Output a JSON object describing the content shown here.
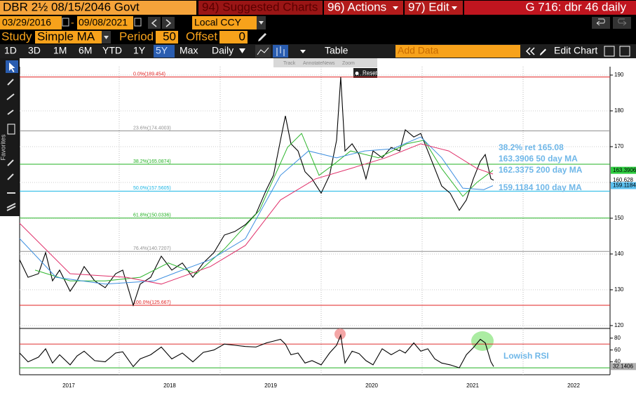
{
  "header": {
    "security": "DBR 2½ 08/15/2046 Govt",
    "suggested": "94) Suggested Charts",
    "actions": "96) Actions",
    "edit": "97) Edit",
    "page": "G 716: dbr 46 daily"
  },
  "range": {
    "start": "03/29/2016",
    "separator": "-",
    "end": "09/08/2021",
    "currency": "Local CCY"
  },
  "study": {
    "label": "Study",
    "name": "Simple MA",
    "period_label": "Period",
    "period": 50,
    "offset_label": "Offset",
    "offset": 0
  },
  "toolbar": {
    "periods": [
      "1D",
      "3D",
      "1M",
      "6M",
      "YTD",
      "1Y",
      "5Y",
      "Max"
    ],
    "selected": 6,
    "frequency": "Daily",
    "table": "Table",
    "add_data": "Add Data",
    "edit_chart": "Edit Chart"
  },
  "chart_tools": {
    "items": [
      "Track",
      "Annotate",
      "News",
      "Zoom"
    ],
    "reset": "Reset",
    "sidebar": "Favorites"
  },
  "chart_data": [
    {
      "type": "line",
      "xlim": [
        2017.014,
        2022.861
      ],
      "ylim": [
        119.2,
        192.35
      ],
      "xticks": [
        {
          "value": 2017.5,
          "label": "2017"
        },
        {
          "value": 2018.5,
          "label": "2018"
        },
        {
          "value": 2019.5,
          "label": "2019"
        },
        {
          "value": 2020.5,
          "label": "2020"
        },
        {
          "value": 2021.5,
          "label": "2021"
        },
        {
          "value": 2022.5,
          "label": "2022"
        }
      ],
      "x_grid": [
        2018,
        2019,
        2020,
        2021,
        2022
      ],
      "yticks": [
        120,
        130,
        140,
        150,
        160,
        170,
        180,
        190
      ],
      "grid": true,
      "axis_side": "right",
      "series": [
        {
          "color": "#000000",
          "x": [
            2017.014,
            2017.097,
            2017.201,
            2017.271,
            2017.34,
            2017.41,
            2017.514,
            2017.583,
            2017.653,
            2017.757,
            2017.861,
            2017.965,
            2018.035,
            2018.139,
            2018.208,
            2018.312,
            2018.417,
            2018.521,
            2018.625,
            2018.729,
            2018.833,
            2018.938,
            2019.042,
            2019.146,
            2019.25,
            2019.354,
            2019.458,
            2019.528,
            2019.597,
            2019.646,
            2019.701,
            2019.771,
            2019.84,
            2019.91,
            2020.0,
            2020.083,
            2020.153,
            2020.194,
            2020.236,
            2020.306,
            2020.375,
            2020.444,
            2020.514,
            2020.604,
            2020.694,
            2020.778,
            2020.833,
            2020.917,
            2020.986,
            2021.056,
            2021.125,
            2021.194,
            2021.278,
            2021.368,
            2021.438,
            2021.507,
            2021.576,
            2021.625,
            2021.681,
            2021.708
          ],
          "values": [
            138.4,
            133.5,
            134.5,
            140.4,
            132.5,
            135.5,
            129.6,
            132.5,
            136.5,
            132.5,
            130.6,
            134.5,
            135.5,
            125.667,
            131.6,
            133.5,
            139.4,
            135.5,
            137.5,
            133.5,
            137.5,
            140.4,
            145.3,
            146.3,
            148.2,
            151.2,
            158,
            162,
            171.8,
            178.6,
            170.8,
            168.8,
            163,
            161,
            157,
            162,
            171.8,
            189.454,
            168.8,
            170.8,
            167.8,
            161,
            168.8,
            166.9,
            169.8,
            168.8,
            174.7,
            172.7,
            173.7,
            168.8,
            163.9,
            159,
            157,
            152.2,
            155.1,
            161,
            165.9,
            167.8,
            161,
            160.628
          ]
        },
        {
          "color": "#2db52d",
          "x": [
            2017.167,
            2017.514,
            2017.861,
            2018.208,
            2018.486,
            2018.764,
            2019.042,
            2019.389,
            2019.667,
            2019.806,
            2019.979,
            2020.118,
            2020.292,
            2020.569,
            2020.847,
            2021.021,
            2021.194,
            2021.403,
            2021.542,
            2021.701
          ],
          "values": [
            135.5,
            132.5,
            132.5,
            133.5,
            137.5,
            134.5,
            141.4,
            152.2,
            169.8,
            173.7,
            162,
            164.9,
            168.8,
            166.9,
            170.8,
            171.8,
            163.9,
            156.1,
            160,
            163.3906
          ]
        },
        {
          "color": "#3d8fe0",
          "x": [
            2017.014,
            2017.375,
            2017.861,
            2018.347,
            2018.625,
            2018.903,
            2019.25,
            2019.597,
            2019.875,
            2020.153,
            2020.431,
            2020.708,
            2020.986,
            2021.194,
            2021.403,
            2021.611,
            2021.701
          ],
          "values": [
            144.3,
            133.5,
            131.6,
            132.5,
            135.5,
            138.4,
            144.3,
            162,
            168.8,
            166.9,
            168.8,
            169.4,
            172.7,
            166.9,
            158.4,
            158,
            159.1184
          ]
        },
        {
          "color": "#e0306a",
          "x": [
            2017.014,
            2017.514,
            2018.069,
            2018.417,
            2018.903,
            2019.25,
            2019.597,
            2019.944,
            2020.292,
            2020.639,
            2020.986,
            2021.264,
            2021.542,
            2021.701
          ],
          "values": [
            148.6,
            134.5,
            133.5,
            131.6,
            136.5,
            142.4,
            155.1,
            161,
            163.9,
            166.9,
            170.8,
            168.8,
            163.9,
            162.3375
          ]
        }
      ],
      "levels": [
        {
          "label": "0.0%(189.454)",
          "value": 189.454,
          "color": "#e02020"
        },
        {
          "label": "23.6%(174.4003)",
          "value": 174.4003,
          "color": "#909090"
        },
        {
          "label": "38.2%(165.0874)",
          "value": 165.0874,
          "color": "#22b022"
        },
        {
          "label": "50.0%(157.5605)",
          "value": 157.5605,
          "color": "#18b4e4"
        },
        {
          "label": "61.8%(150.0336)",
          "value": 150.0336,
          "color": "#22b022"
        },
        {
          "label": "76.4%(140.7207)",
          "value": 140.7207,
          "color": "#909090"
        },
        {
          "label": "100.0%(125.667)",
          "value": 125.667,
          "color": "#e02020"
        }
      ],
      "last_values": [
        {
          "value": 163.3906,
          "color": "#2ecc40"
        },
        {
          "value": 160.628,
          "color": "#ffffff"
        },
        {
          "value": 159.1184,
          "color": "#5bc0f0"
        }
      ],
      "annotations": [
        "38.2% ret 165.08",
        "163.3906 50 day MA",
        "162.3375 200 day MA",
        "159.1184 100 day MA"
      ]
    },
    {
      "type": "line",
      "xlim": [
        2017.014,
        2022.861
      ],
      "ylim": [
        23,
        94
      ],
      "yticks": [
        40,
        60,
        80
      ],
      "axis_side": "right",
      "series": [
        {
          "color": "#000000",
          "x": [
            2017.014,
            2017.097,
            2017.201,
            2017.271,
            2017.34,
            2017.41,
            2017.514,
            2017.583,
            2017.653,
            2017.757,
            2017.861,
            2017.965,
            2018.035,
            2018.139,
            2018.208,
            2018.312,
            2018.417,
            2018.521,
            2018.625,
            2018.729,
            2018.833,
            2018.938,
            2019.042,
            2019.146,
            2019.25,
            2019.354,
            2019.458,
            2019.528,
            2019.597,
            2019.646,
            2019.701,
            2019.771,
            2019.84,
            2019.91,
            2020.0,
            2020.083,
            2020.153,
            2020.194,
            2020.236,
            2020.306,
            2020.375,
            2020.444,
            2020.514,
            2020.604,
            2020.694,
            2020.778,
            2020.833,
            2020.917,
            2020.986,
            2021.056,
            2021.125,
            2021.194,
            2021.278,
            2021.368,
            2021.438,
            2021.507,
            2021.576,
            2021.625,
            2021.681,
            2021.708
          ],
          "values": [
            55,
            40,
            48,
            62,
            38,
            52,
            35,
            50,
            58,
            42,
            40,
            55,
            57,
            32,
            45,
            52,
            65,
            45,
            55,
            40,
            56,
            60,
            70,
            68,
            66,
            65,
            72,
            75,
            78,
            70,
            52,
            55,
            38,
            42,
            35,
            55,
            68,
            85,
            38,
            58,
            54,
            42,
            35,
            62,
            52,
            60,
            55,
            72,
            58,
            62,
            45,
            38,
            35,
            30,
            52,
            64,
            78,
            72,
            40,
            32.1406
          ]
        }
      ],
      "levels": [
        {
          "value": 70,
          "color": "#e03030"
        },
        {
          "value": 30,
          "color": "#22b022"
        }
      ],
      "last_values": [
        {
          "value": 32.1406,
          "color": "#b0b0b0"
        }
      ],
      "annotations": [
        "Lowish RSI"
      ]
    }
  ]
}
